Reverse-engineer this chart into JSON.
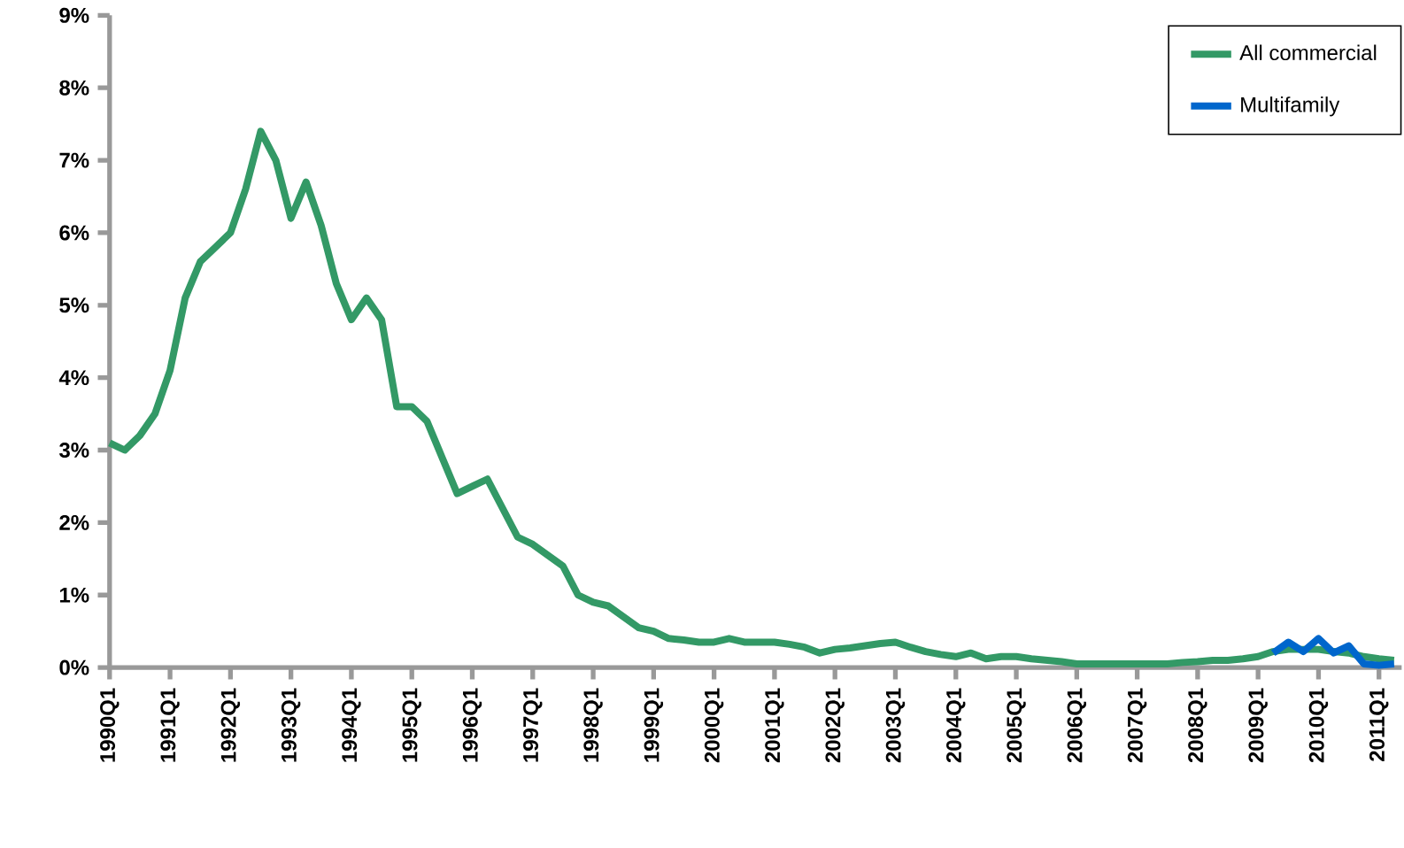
{
  "chart_data": {
    "type": "line",
    "legend": "top right",
    "ylim": [
      0,
      9
    ],
    "categories": [
      "1990Q1",
      null,
      null,
      null,
      "1991Q1",
      null,
      null,
      null,
      "1992Q1",
      null,
      null,
      null,
      "1993Q1",
      null,
      null,
      null,
      "1994Q1",
      null,
      null,
      null,
      "1995Q1",
      null,
      null,
      null,
      "1996Q1",
      null,
      null,
      null,
      "1997Q1",
      null,
      null,
      null,
      "1998Q1",
      null,
      null,
      null,
      "1999Q1",
      null,
      null,
      null,
      "2000Q1",
      null,
      null,
      null,
      "2001Q1",
      null,
      null,
      null,
      "2002Q1",
      null,
      null,
      null,
      "2003Q1",
      null,
      null,
      null,
      "2004Q1",
      null,
      null,
      null,
      "2005Q1",
      null,
      null,
      null,
      "2006Q1",
      null,
      null,
      null,
      "2007Q1",
      null,
      null,
      null,
      "2008Q1",
      null,
      null,
      null,
      "2009Q1",
      null,
      null,
      null,
      "2010Q1",
      null,
      null,
      null,
      "2011Q1",
      null
    ],
    "yticks": [
      {
        "value": 0,
        "label": "0%"
      },
      {
        "value": 1,
        "label": "1%"
      },
      {
        "value": 2,
        "label": "2%"
      },
      {
        "value": 3,
        "label": "3%"
      },
      {
        "value": 4,
        "label": "4%"
      },
      {
        "value": 5,
        "label": "5%"
      },
      {
        "value": 6,
        "label": "6%"
      },
      {
        "value": 7,
        "label": "7%"
      },
      {
        "value": 8,
        "label": "8%"
      },
      {
        "value": 9,
        "label": "9%"
      }
    ],
    "series": [
      {
        "name": "All commercial",
        "color": "#339966",
        "values": [
          3.1,
          3.0,
          3.2,
          3.5,
          4.1,
          5.1,
          5.6,
          5.8,
          6.0,
          6.6,
          7.4,
          7.0,
          6.2,
          6.7,
          6.1,
          5.3,
          4.8,
          5.1,
          4.8,
          3.6,
          3.6,
          3.4,
          2.9,
          2.4,
          2.5,
          2.6,
          2.2,
          1.8,
          1.7,
          1.55,
          1.4,
          1.0,
          0.9,
          0.85,
          0.7,
          0.55,
          0.5,
          0.4,
          0.38,
          0.35,
          0.35,
          0.4,
          0.35,
          0.35,
          0.35,
          0.32,
          0.28,
          0.2,
          0.25,
          0.27,
          0.3,
          0.33,
          0.35,
          0.28,
          0.22,
          0.18,
          0.15,
          0.2,
          0.12,
          0.15,
          0.15,
          0.12,
          0.1,
          0.08,
          0.05,
          0.05,
          0.05,
          0.05,
          0.05,
          0.05,
          0.05,
          0.07,
          0.08,
          0.1,
          0.1,
          0.12,
          0.15,
          0.22,
          0.25,
          0.25,
          0.25,
          0.22,
          0.2,
          0.15,
          0.12,
          0.1
        ]
      },
      {
        "name": "Multifamily",
        "color": "#0066cc",
        "values": [
          null,
          null,
          null,
          null,
          null,
          null,
          null,
          null,
          null,
          null,
          null,
          null,
          null,
          null,
          null,
          null,
          null,
          null,
          null,
          null,
          null,
          null,
          null,
          null,
          null,
          null,
          null,
          null,
          null,
          null,
          null,
          null,
          null,
          null,
          null,
          null,
          null,
          null,
          null,
          null,
          null,
          null,
          null,
          null,
          null,
          null,
          null,
          null,
          null,
          null,
          null,
          null,
          null,
          null,
          null,
          null,
          null,
          null,
          null,
          null,
          null,
          null,
          null,
          null,
          null,
          null,
          null,
          null,
          null,
          null,
          null,
          null,
          null,
          null,
          null,
          null,
          null,
          0.2,
          0.35,
          0.22,
          0.4,
          0.2,
          0.3,
          0.05,
          0.03,
          0.05
        ]
      }
    ]
  }
}
